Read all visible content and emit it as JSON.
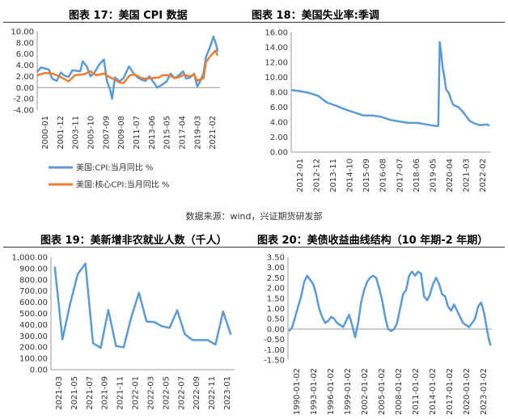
{
  "source_note": "数据来源：wind，兴证期货研发部",
  "chart_data": [
    {
      "type": "line",
      "title": "图表 17：美国 CPI 数据",
      "x_tick_labels": [
        "2000-01",
        "2001-12",
        "2003-11",
        "2005-10",
        "2007-09",
        "2009-08",
        "2011-07",
        "2013-06",
        "2015-05",
        "2017-04",
        "2019-03",
        "2021-02"
      ],
      "ylim": [
        -4,
        10
      ],
      "y_ticks": [
        10,
        8,
        6,
        4,
        2,
        0,
        -2,
        -4
      ],
      "y_tick_labels": [
        "10.00",
        "8.00",
        "6.00",
        "4.00",
        "2.00",
        "0.00",
        "-2.00",
        "-4.00"
      ],
      "series": [
        {
          "name": "美国:CPI:当月同比 %",
          "color": "#5b9bd5",
          "x": [
            2000.0,
            2000.5,
            2001.0,
            2001.5,
            2001.9,
            2002.5,
            2003.0,
            2003.5,
            2004.0,
            2004.5,
            2005.0,
            2005.5,
            2005.8,
            2006.3,
            2006.8,
            2007.3,
            2007.9,
            2008.5,
            2008.9,
            2009.3,
            2009.55,
            2009.9,
            2010.5,
            2011.0,
            2011.7,
            2012.3,
            2012.8,
            2013.3,
            2013.8,
            2014.3,
            2014.9,
            2015.3,
            2015.9,
            2016.5,
            2017.0,
            2017.5,
            2018.0,
            2018.6,
            2019.0,
            2019.5,
            2020.0,
            2020.4,
            2020.8,
            2021.2,
            2021.5,
            2021.9,
            2022.2,
            2022.45,
            2022.8,
            2023.0
          ],
          "y": [
            2.8,
            3.6,
            3.4,
            3.2,
            1.6,
            1.2,
            2.7,
            2.1,
            1.9,
            3.1,
            3.0,
            2.9,
            4.7,
            3.8,
            2.0,
            2.7,
            4.1,
            5.0,
            1.1,
            -0.4,
            -2.0,
            1.8,
            1.1,
            1.7,
            3.8,
            2.5,
            1.8,
            1.4,
            1.2,
            2.0,
            0.8,
            0.0,
            0.5,
            1.1,
            2.5,
            1.7,
            2.1,
            2.9,
            1.6,
            1.8,
            2.5,
            0.2,
            1.2,
            2.6,
            5.4,
            6.8,
            7.9,
            9.1,
            7.7,
            6.4
          ]
        },
        {
          "name": "美国:核心CPI:当月同比 %",
          "color": "#ed7d31",
          "x": [
            2000.0,
            2001.0,
            2002.0,
            2002.8,
            2003.5,
            2004.0,
            2004.8,
            2006.0,
            2006.8,
            2007.5,
            2008.5,
            2009.3,
            2009.8,
            2010.5,
            2011.0,
            2011.8,
            2012.5,
            2013.3,
            2014.0,
            2014.8,
            2015.5,
            2016.0,
            2016.8,
            2017.5,
            2018.0,
            2018.7,
            2019.5,
            2020.0,
            2020.4,
            2020.9,
            2021.2,
            2021.5,
            2022.0,
            2022.7,
            2023.0
          ],
          "y": [
            2.2,
            2.6,
            2.5,
            2.0,
            1.5,
            1.1,
            2.2,
            2.4,
            2.9,
            2.2,
            2.5,
            1.8,
            1.5,
            0.9,
            0.8,
            2.2,
            2.3,
            1.7,
            1.6,
            1.7,
            1.8,
            2.2,
            2.2,
            1.7,
            1.8,
            2.3,
            2.0,
            2.3,
            1.2,
            1.6,
            1.6,
            4.5,
            5.5,
            6.6,
            5.7
          ]
        }
      ]
    },
    {
      "type": "line",
      "title": "图表 18：美国失业率:季调",
      "x_tick_labels": [
        "2012-01",
        "2012-12",
        "2013-11",
        "2014-10",
        "2015-09",
        "2016-08",
        "2017-07",
        "2018-06",
        "2019-05",
        "2020-04",
        "2021-03",
        "2022-02"
      ],
      "ylim": [
        0,
        16
      ],
      "y_ticks": [
        16,
        14,
        12,
        10,
        8,
        6,
        4,
        2,
        0
      ],
      "y_tick_labels": [
        "16.00",
        "14.00",
        "12.00",
        "10.00",
        "8.00",
        "6.00",
        "4.00",
        "2.00",
        "0.00"
      ],
      "series": [
        {
          "name": "",
          "color": "#5b9bd5",
          "x": [
            2012.0,
            2012.6,
            2013.0,
            2013.5,
            2014.0,
            2014.5,
            2015.0,
            2015.5,
            2016.0,
            2016.5,
            2017.0,
            2017.5,
            2018.0,
            2018.5,
            2019.0,
            2019.5,
            2020.0,
            2020.17,
            2020.25,
            2020.33,
            2020.42,
            2020.5,
            2020.6,
            2020.75,
            2020.9,
            2021.0,
            2021.3,
            2021.6,
            2021.9,
            2022.2,
            2022.5,
            2022.9,
            2023.0
          ],
          "y": [
            8.3,
            8.1,
            7.9,
            7.5,
            6.6,
            6.2,
            5.7,
            5.3,
            4.9,
            4.9,
            4.7,
            4.3,
            4.1,
            3.9,
            3.9,
            3.7,
            3.5,
            3.5,
            14.7,
            13.3,
            11.1,
            10.2,
            8.4,
            7.9,
            6.9,
            6.3,
            6.0,
            5.2,
            4.2,
            3.8,
            3.6,
            3.7,
            3.5
          ]
        }
      ]
    },
    {
      "type": "line",
      "title": "图表 19：美新增非农就业人数（千人）",
      "x_tick_labels": [
        "2021-03",
        "2021-05",
        "2021-07",
        "2021-09",
        "2021-11",
        "2022-01",
        "2022-03",
        "2022-05",
        "2022-07",
        "2022-09",
        "2022-11",
        "2023-01"
      ],
      "ylim": [
        0,
        1000
      ],
      "y_ticks": [
        1000,
        900,
        800,
        700,
        600,
        500,
        400,
        300,
        200,
        100,
        0
      ],
      "y_tick_labels": [
        "1,000.00",
        "900.00",
        "800.00",
        "700.00",
        "600.00",
        "500.00",
        "400.00",
        "300.00",
        "200.00",
        "100.00",
        "0.00"
      ],
      "series": [
        {
          "name": "",
          "color": "#5b9bd5",
          "categories": [
            "2021-03",
            "2021-04",
            "2021-05",
            "2021-06",
            "2021-07",
            "2021-08",
            "2021-09",
            "2021-10",
            "2021-11",
            "2021-12",
            "2022-01",
            "2022-02",
            "2022-03",
            "2022-04",
            "2022-05",
            "2022-06",
            "2022-07",
            "2022-08",
            "2022-09",
            "2022-10",
            "2022-11",
            "2022-12",
            "2023-01",
            "2023-02"
          ],
          "y": [
            916,
            269,
            583,
            850,
            943,
            235,
            194,
            531,
            210,
            199,
            467,
            683,
            428,
            424,
            386,
            372,
            528,
            315,
            263,
            263,
            263,
            223,
            517,
            311
          ]
        }
      ]
    },
    {
      "type": "line",
      "title": "图表 20：美债收益曲线结构（10 年期-2 年期）",
      "x_tick_labels": [
        "1990-01-02",
        "1993-01-02",
        "1996-01-02",
        "1999-01-02",
        "2002-01-02",
        "2005-01-02",
        "2008-01-02",
        "2011-01-02",
        "2014-01-02",
        "2017-01-02",
        "2020-01-02",
        "2023-01-02"
      ],
      "ylim": [
        -1.5,
        3.5
      ],
      "y_ticks": [
        3.5,
        3,
        2.5,
        2,
        1.5,
        1,
        0.5,
        0,
        -0.5,
        -1,
        -1.5
      ],
      "y_tick_labels": [
        "3.50",
        "3.00",
        "2.50",
        "2.00",
        "1.50",
        "1.00",
        "0.50",
        "0.00",
        "-0.50",
        "-1.00",
        "-1.50"
      ],
      "series": [
        {
          "name": "",
          "color": "#5b9bd5",
          "x": [
            1989.5,
            1990.0,
            1990.5,
            1991.0,
            1991.5,
            1992.0,
            1992.5,
            1993.0,
            1993.5,
            1994.0,
            1994.5,
            1995.0,
            1995.5,
            1996.0,
            1996.5,
            1997.0,
            1997.5,
            1998.0,
            1998.5,
            1999.0,
            1999.5,
            2000.0,
            2000.5,
            2001.0,
            2001.5,
            2002.0,
            2002.5,
            2003.0,
            2003.5,
            2004.0,
            2004.5,
            2005.0,
            2005.5,
            2006.0,
            2006.5,
            2007.0,
            2007.5,
            2008.0,
            2008.5,
            2009.0,
            2009.5,
            2010.0,
            2010.5,
            2011.0,
            2011.5,
            2012.0,
            2012.5,
            2013.0,
            2013.5,
            2014.0,
            2014.5,
            2015.0,
            2015.5,
            2016.0,
            2016.5,
            2017.0,
            2017.5,
            2018.0,
            2018.5,
            2019.0,
            2019.5,
            2020.0,
            2020.5,
            2021.0,
            2021.5,
            2022.0,
            2022.3,
            2022.6,
            2022.9,
            2023.1
          ],
          "y": [
            -0.1,
            0.1,
            0.6,
            1.1,
            1.6,
            2.3,
            2.6,
            2.4,
            2.2,
            1.7,
            1.0,
            0.6,
            0.3,
            0.4,
            0.6,
            0.5,
            0.3,
            0.2,
            0.1,
            0.4,
            0.7,
            0.2,
            -0.4,
            0.3,
            1.3,
            1.9,
            2.3,
            2.5,
            2.6,
            2.5,
            2.0,
            1.4,
            0.6,
            0.0,
            -0.1,
            0.0,
            0.3,
            1.0,
            1.7,
            1.9,
            2.6,
            2.8,
            2.6,
            2.8,
            2.7,
            1.6,
            1.4,
            1.7,
            2.2,
            2.5,
            2.2,
            1.7,
            1.6,
            1.1,
            0.9,
            1.2,
            0.9,
            0.6,
            0.3,
            0.2,
            0.1,
            0.3,
            0.5,
            1.1,
            1.3,
            0.8,
            0.3,
            -0.2,
            -0.6,
            -0.8
          ]
        }
      ]
    }
  ]
}
